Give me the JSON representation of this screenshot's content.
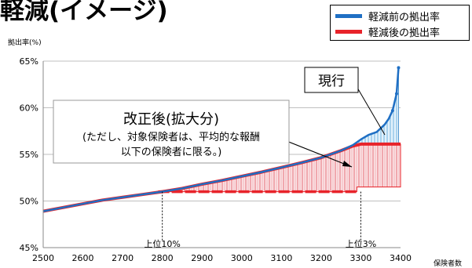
{
  "chart_data": {
    "type": "line",
    "title": "軽減(イメージ)",
    "ylabel": "拠出率(%)",
    "xlabel": "保険者数",
    "xlim": [
      2500,
      3400
    ],
    "ylim": [
      45,
      65
    ],
    "x_ticks": [
      2500,
      2600,
      2700,
      2800,
      2900,
      3000,
      3100,
      3200,
      3300,
      3400
    ],
    "y_ticks": [
      45,
      50,
      55,
      60,
      65
    ],
    "y_tick_labels": [
      "45%",
      "50%",
      "55%",
      "60%",
      "65%"
    ],
    "grid": "horizontal",
    "legend_position": "top-right",
    "series": [
      {
        "name": "軽減前の拠出率",
        "color": "#1f6fc4",
        "x": [
          2500,
          2550,
          2600,
          2650,
          2700,
          2750,
          2800,
          2850,
          2900,
          2950,
          3000,
          3050,
          3100,
          3150,
          3200,
          3250,
          3280,
          3300,
          3320,
          3340,
          3350,
          3360,
          3370,
          3380,
          3390,
          3395
        ],
        "values": [
          48.9,
          49.3,
          49.7,
          50.1,
          50.4,
          50.7,
          51.0,
          51.35,
          51.8,
          52.2,
          52.65,
          53.1,
          53.6,
          54.1,
          54.65,
          55.4,
          56.0,
          56.6,
          57.1,
          57.4,
          57.8,
          58.2,
          58.8,
          59.7,
          61.5,
          64.3
        ]
      },
      {
        "name": "軽減後の拠出率",
        "color": "#e8232a",
        "x": [
          2500,
          2550,
          2600,
          2650,
          2700,
          2750,
          2800,
          2850,
          2900,
          2950,
          3000,
          3050,
          3100,
          3150,
          3200,
          3250,
          3280,
          3300,
          3400
        ],
        "values": [
          48.9,
          49.3,
          49.7,
          50.1,
          50.4,
          50.7,
          51.0,
          51.35,
          51.8,
          52.2,
          52.65,
          53.1,
          53.6,
          54.1,
          54.65,
          55.4,
          55.9,
          56.1,
          56.1
        ]
      }
    ],
    "floor_line": {
      "x": [
        2790,
        3290
      ],
      "value": 51.0
    },
    "markers": [
      {
        "x": 2800,
        "label": "上位10%"
      },
      {
        "x": 3300,
        "label": "上位3%"
      }
    ],
    "annotations": {
      "current": "現行",
      "expansion_title": "改正後(拡大分)",
      "expansion_line1": "(ただし、対象保険者は、平均的な報酬",
      "expansion_line2": "以下の保険者に限る。)"
    }
  }
}
